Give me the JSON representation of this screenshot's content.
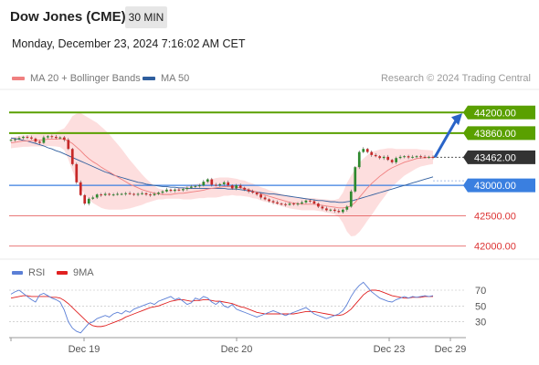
{
  "header": {
    "title": "Dow Jones (CME)",
    "timeframe": "30 MIN",
    "datetime": "Monday, December 23, 2024 7:16:02 AM CET"
  },
  "legend": {
    "bollinger_label": "MA 20 + Bollinger Bands",
    "bollinger_color": "#f08080",
    "ma50_label": "MA 50",
    "ma50_color": "#2f5e9e",
    "research": "Research © 2024 Trading Central"
  },
  "rsi_legend": {
    "rsi_label": "RSI",
    "rsi_color": "#5b7fd6",
    "ma9_label": "9MA",
    "ma9_color": "#e02020"
  },
  "chart_data": [
    {
      "type": "candlestick",
      "x_ticks": [
        "Dec 19",
        "Dec 20",
        "Dec 23",
        "Dec 29"
      ],
      "ylim": [
        41800,
        44550
      ],
      "last_price": {
        "label": "43462.00",
        "value": 43462,
        "color": "#333333"
      },
      "levels": [
        {
          "label": "44200.00",
          "value": 44200,
          "kind": "resistance",
          "color": "#5aa000"
        },
        {
          "label": "43860.00",
          "value": 43860,
          "kind": "resistance",
          "color": "#5aa000"
        },
        {
          "label": "43000.00",
          "value": 43000,
          "kind": "pivot",
          "color": "#3a7fe0"
        },
        {
          "label": "42500.00",
          "value": 42500,
          "kind": "support",
          "color": "#e04040"
        },
        {
          "label": "42000.00",
          "value": 42000,
          "kind": "support",
          "color": "#e04040"
        }
      ],
      "closes": [
        43750,
        43760,
        43780,
        43800,
        43790,
        43770,
        43720,
        43700,
        43790,
        43810,
        43800,
        43780,
        43790,
        43750,
        43600,
        43350,
        43050,
        42840,
        42700,
        42780,
        42800,
        42850,
        42840,
        42860,
        42850,
        42850,
        42860,
        42860,
        42870,
        42860,
        42850,
        42860,
        42870,
        42850,
        42840,
        42860,
        42880,
        42900,
        42930,
        42910,
        42930,
        42920,
        42940,
        42960,
        42980,
        42990,
        43000,
        43060,
        43100,
        43010,
        43000,
        43020,
        43050,
        43000,
        42950,
        43000,
        42960,
        42930,
        42900,
        42880,
        42850,
        42800,
        42770,
        42740,
        42720,
        42700,
        42690,
        42680,
        42700,
        42690,
        42700,
        42720,
        42750,
        42740,
        42700,
        42650,
        42620,
        42590,
        42600,
        42580,
        42560,
        42600,
        42650,
        42900,
        43300,
        43550,
        43600,
        43550,
        43500,
        43480,
        43450,
        43470,
        43420,
        43380,
        43450,
        43470,
        43480,
        43460,
        43470,
        43480,
        43470,
        43460,
        43470,
        43462
      ],
      "ma20": [
        43700,
        43710,
        43720,
        43730,
        43730,
        43740,
        43740,
        43745,
        43750,
        43760,
        43760,
        43760,
        43770,
        43760,
        43730,
        43690,
        43630,
        43570,
        43500,
        43440,
        43390,
        43350,
        43300,
        43260,
        43220,
        43180,
        43140,
        43100,
        43060,
        43020,
        42990,
        42960,
        42930,
        42910,
        42890,
        42870,
        42860,
        42850,
        42850,
        42850,
        42860,
        42870,
        42870,
        42880,
        42890,
        42900,
        42910,
        42920,
        42940,
        42950,
        42960,
        42970,
        42980,
        42980,
        42980,
        42970,
        42960,
        42950,
        42930,
        42910,
        42890,
        42860,
        42840,
        42820,
        42800,
        42780,
        42760,
        42740,
        42720,
        42710,
        42700,
        42690,
        42690,
        42690,
        42690,
        42680,
        42670,
        42660,
        42650,
        42640,
        42630,
        42630,
        42640,
        42660,
        42720,
        42800,
        42880,
        42960,
        43030,
        43090,
        43150,
        43200,
        43250,
        43290,
        43320,
        43350,
        43380,
        43400,
        43420,
        43440,
        43450,
        43455,
        43460,
        43462
      ],
      "bollinger_width": [
        90,
        90,
        95,
        95,
        95,
        100,
        100,
        105,
        110,
        110,
        115,
        120,
        140,
        180,
        300,
        450,
        550,
        620,
        650,
        670,
        680,
        680,
        670,
        650,
        620,
        580,
        540,
        500,
        450,
        400,
        350,
        300,
        250,
        200,
        160,
        120,
        90,
        80,
        70,
        70,
        80,
        90,
        100,
        110,
        120,
        120,
        120,
        130,
        140,
        150,
        160,
        160,
        150,
        150,
        140,
        140,
        130,
        130,
        120,
        120,
        110,
        110,
        110,
        100,
        100,
        100,
        100,
        100,
        100,
        100,
        100,
        100,
        100,
        100,
        100,
        100,
        100,
        110,
        110,
        120,
        150,
        250,
        400,
        500,
        550,
        570,
        560,
        540,
        520,
        480,
        440,
        400,
        360,
        320,
        280,
        250,
        220,
        200,
        180,
        160,
        140,
        130,
        120,
        110
      ],
      "ma50": [
        43780,
        43770,
        43760,
        43740,
        43730,
        43710,
        43690,
        43670,
        43650,
        43620,
        43600,
        43570,
        43550,
        43520,
        43490,
        43460,
        43430,
        43400,
        43370,
        43340,
        43310,
        43280,
        43250,
        43220,
        43200,
        43170,
        43150,
        43130,
        43110,
        43090,
        43070,
        43050,
        43040,
        43020,
        43010,
        43000,
        42990,
        42980,
        42980,
        42970,
        42970,
        42960,
        42960,
        42950,
        42950,
        42950,
        42950,
        42950,
        42950,
        42950,
        42950,
        42950,
        42950,
        42940,
        42940,
        42940,
        42930,
        42920,
        42910,
        42900,
        42890,
        42880,
        42870,
        42860,
        42860,
        42850,
        42840,
        42830,
        42820,
        42810,
        42800,
        42790,
        42780,
        42770,
        42760,
        42750,
        42750,
        42740,
        42730,
        42730,
        42720,
        42720,
        42730,
        42740,
        42760,
        42780,
        42800,
        42820,
        42840,
        42860,
        42880,
        42900,
        42920,
        42940,
        42960,
        42980,
        43000,
        43020,
        43040,
        43060,
        43080,
        43100,
        43120,
        43140
      ],
      "forecast": {
        "from": 43462,
        "to": 44200
      }
    },
    {
      "type": "line",
      "name": "RSI",
      "x_ticks": [
        "Dec 19",
        "Dec 20",
        "Dec 23",
        "Dec 29"
      ],
      "ylim": [
        10,
        85
      ],
      "y_ticks": [
        "70",
        "50",
        "30"
      ],
      "rsi": [
        65,
        68,
        70,
        66,
        62,
        58,
        55,
        64,
        66,
        63,
        60,
        58,
        55,
        45,
        30,
        22,
        18,
        16,
        22,
        28,
        30,
        34,
        36,
        38,
        36,
        40,
        42,
        40,
        44,
        42,
        46,
        48,
        50,
        52,
        54,
        52,
        56,
        58,
        60,
        62,
        58,
        60,
        56,
        52,
        54,
        60,
        58,
        62,
        60,
        55,
        52,
        56,
        50,
        48,
        52,
        46,
        44,
        42,
        40,
        38,
        36,
        38,
        40,
        42,
        44,
        42,
        40,
        38,
        40,
        42,
        44,
        46,
        48,
        44,
        40,
        38,
        36,
        34,
        36,
        38,
        40,
        44,
        52,
        62,
        70,
        76,
        80,
        74,
        68,
        64,
        60,
        58,
        56,
        55,
        58,
        60,
        62,
        60,
        62,
        61,
        62,
        63,
        62,
        63
      ],
      "ma9": [
        60,
        61,
        62,
        63,
        63,
        62,
        62,
        62,
        62,
        62,
        61,
        61,
        60,
        57,
        53,
        48,
        43,
        38,
        33,
        28,
        25,
        24,
        24,
        25,
        27,
        29,
        31,
        33,
        36,
        38,
        40,
        42,
        44,
        46,
        48,
        49,
        50,
        52,
        54,
        56,
        57,
        58,
        58,
        57,
        56,
        57,
        57,
        58,
        58,
        57,
        56,
        56,
        55,
        54,
        53,
        51,
        49,
        48,
        46,
        44,
        42,
        41,
        40,
        40,
        40,
        40,
        40,
        40,
        40,
        40,
        41,
        42,
        43,
        43,
        43,
        42,
        41,
        40,
        39,
        38,
        38,
        39,
        42,
        46,
        52,
        58,
        64,
        68,
        70,
        70,
        69,
        67,
        65,
        63,
        62,
        61,
        60,
        60,
        61,
        61,
        61,
        62,
        62,
        62
      ]
    }
  ]
}
